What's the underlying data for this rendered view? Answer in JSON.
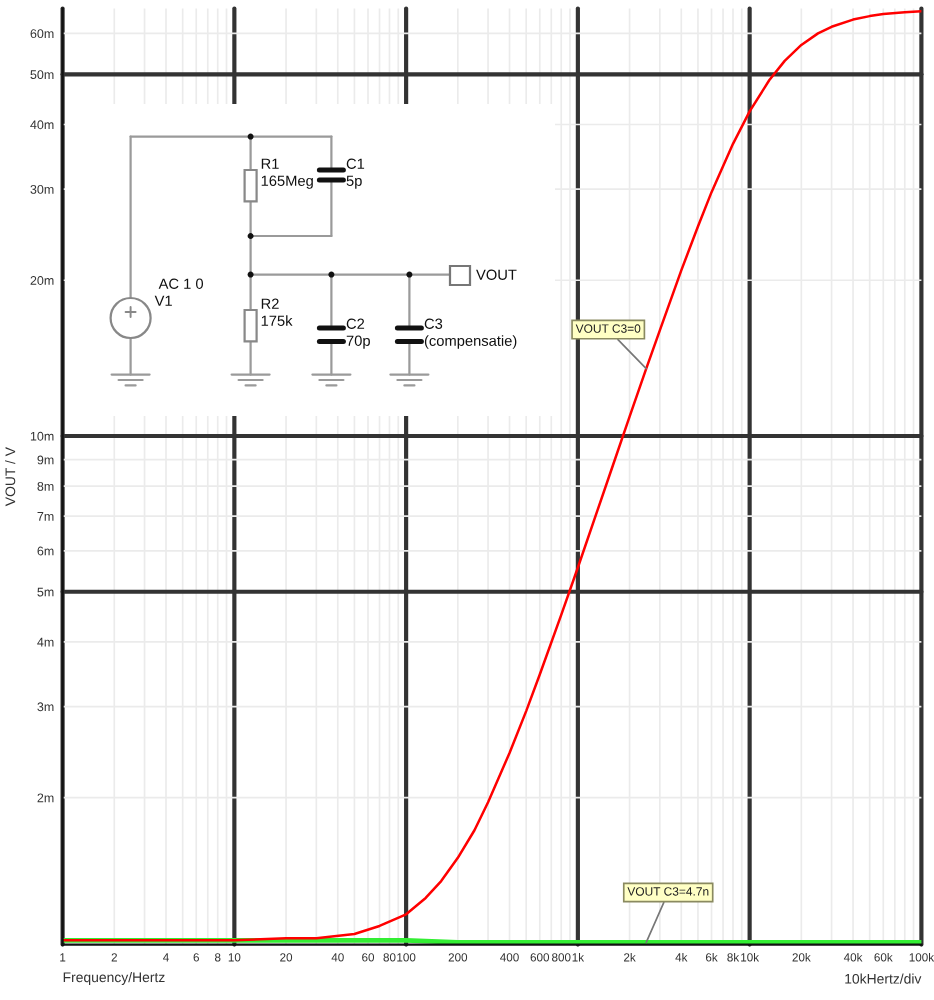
{
  "chart_data": {
    "type": "line",
    "xlabel": "Frequency/Hertz",
    "ylabel": "VOUT / V",
    "annotations": [
      "10kHertz/div",
      "R1",
      "165Meg",
      "C1",
      "5p",
      "R2",
      "175k",
      "C2",
      "70p",
      "C3",
      "(compensatie)",
      "VOUT",
      "AC 1 0",
      "V1"
    ],
    "log": "xy",
    "xlim": [
      1,
      100000
    ],
    "ylim": [
      1.04,
      67
    ],
    "xticks": [
      1,
      2,
      {
        "value": 3,
        "label": null
      },
      4,
      {
        "value": 5,
        "label": null
      },
      6,
      {
        "value": 7,
        "label": null
      },
      8,
      {
        "value": 9,
        "label": null
      },
      10,
      20,
      {
        "value": 30,
        "label": null
      },
      40,
      {
        "value": 50,
        "label": null
      },
      60,
      {
        "value": 70,
        "label": null
      },
      80,
      {
        "value": 90,
        "label": null
      },
      100,
      200,
      {
        "value": 300,
        "label": null
      },
      400,
      {
        "value": 500,
        "label": null
      },
      600,
      {
        "value": 700,
        "label": null
      },
      800,
      {
        "value": 900,
        "label": null
      },
      {
        "value": 1000,
        "label": "1k"
      },
      {
        "value": 2000,
        "label": "2k"
      },
      {
        "value": 3000,
        "label": null
      },
      {
        "value": 4000,
        "label": "4k"
      },
      {
        "value": 5000,
        "label": null
      },
      {
        "value": 6000,
        "label": "6k"
      },
      {
        "value": 7000,
        "label": null
      },
      {
        "value": 8000,
        "label": "8k"
      },
      {
        "value": 9000,
        "label": null
      },
      {
        "value": 10000,
        "label": "10k"
      },
      {
        "value": 20000,
        "label": "20k"
      },
      {
        "value": 30000,
        "label": null
      },
      {
        "value": 40000,
        "label": "40k"
      },
      {
        "value": 50000,
        "label": null
      },
      {
        "value": 60000,
        "label": "60k"
      },
      {
        "value": 70000,
        "label": null
      },
      {
        "value": 80000,
        "label": null
      },
      {
        "value": 90000,
        "label": null
      },
      {
        "value": 100000,
        "label": "100k"
      }
    ],
    "yticks": [
      {
        "value": 2,
        "label": "2m"
      },
      {
        "value": 3,
        "label": "3m"
      },
      {
        "value": 4,
        "label": "4m"
      },
      {
        "value": 5,
        "label": "5m"
      },
      {
        "value": 6,
        "label": "6m"
      },
      {
        "value": 7,
        "label": "7m"
      },
      {
        "value": 8,
        "label": "8m"
      },
      {
        "value": 9,
        "label": "9m"
      },
      {
        "value": 10,
        "label": "10m"
      },
      {
        "value": 20,
        "label": "20m"
      },
      {
        "value": 30,
        "label": "30m"
      },
      {
        "value": 40,
        "label": "40m"
      },
      {
        "value": 50,
        "label": "50m"
      },
      {
        "value": 60,
        "label": "60m"
      }
    ],
    "grid": true,
    "series": [
      {
        "name": "VOUT C3=0",
        "color": "#ff0000",
        "x": [
          1,
          3,
          10,
          20,
          30,
          50,
          70,
          100,
          130,
          160,
          200,
          250,
          300,
          400,
          500,
          600,
          800,
          1000,
          1300,
          1600,
          2000,
          2500,
          3000,
          4000,
          5000,
          6000,
          8000,
          10000,
          13000,
          16000,
          20000,
          25000,
          30000,
          40000,
          50000,
          60000,
          80000,
          100000
        ],
        "values": [
          1.06,
          1.06,
          1.06,
          1.07,
          1.07,
          1.09,
          1.13,
          1.19,
          1.28,
          1.38,
          1.53,
          1.73,
          1.96,
          2.44,
          2.94,
          3.46,
          4.51,
          5.57,
          7.18,
          8.78,
          10.9,
          13.5,
          16.0,
          20.9,
          25.4,
          29.6,
          36.7,
          42.4,
          48.7,
          53.1,
          57.0,
          60.0,
          61.8,
          63.8,
          64.8,
          65.4,
          65.9,
          66.2
        ]
      },
      {
        "name": "VOUT C3=4.7n",
        "color": "#33ee33",
        "x": [
          1,
          10,
          100,
          200,
          500,
          1000,
          2500,
          10000,
          100000
        ],
        "values": [
          1.06,
          1.06,
          1.06,
          1.05,
          1.05,
          1.05,
          1.05,
          1.05,
          1.05
        ]
      }
    ]
  }
}
